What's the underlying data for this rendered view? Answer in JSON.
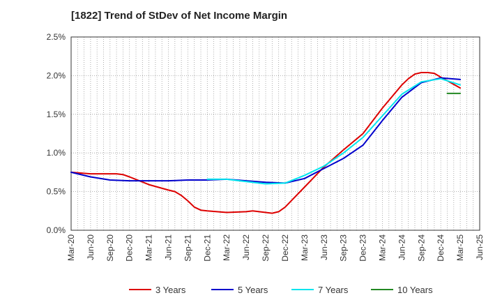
{
  "chart_data": {
    "type": "line",
    "title": "[1822]  Trend of StDev of Net Income Margin",
    "xlabel": "",
    "ylabel": "",
    "x_ticks": [
      "Mar-20",
      "Jun-20",
      "Sep-20",
      "Dec-20",
      "Mar-21",
      "Jun-21",
      "Sep-21",
      "Dec-21",
      "Mar-22",
      "Jun-22",
      "Sep-22",
      "Dec-22",
      "Mar-23",
      "Jun-23",
      "Sep-23",
      "Dec-23",
      "Mar-24",
      "Jun-24",
      "Sep-24",
      "Dec-24",
      "Mar-25",
      "Jun-25"
    ],
    "y_ticks": [
      "0.0%",
      "0.5%",
      "1.0%",
      "1.5%",
      "2.0%",
      "2.5%"
    ],
    "ylim": [
      0,
      2.5
    ],
    "y_unit": "%",
    "grid": true,
    "legend_position": "bottom",
    "series": [
      {
        "name": "3 Years",
        "color": "#dd0000",
        "x": [
          "Mar-20",
          "Jun-20",
          "Sep-20",
          "Oct-20",
          "Nov-20",
          "Dec-20",
          "Mar-21",
          "Jun-21",
          "Jul-21",
          "Aug-21",
          "Sep-21",
          "Oct-21",
          "Nov-21",
          "Dec-21",
          "Mar-22",
          "Jun-22",
          "Jul-22",
          "Aug-22",
          "Sep-22",
          "Oct-22",
          "Nov-22",
          "Dec-22",
          "Mar-23",
          "Jun-23",
          "Sep-23",
          "Dec-23",
          "Mar-24",
          "Jun-24",
          "Jul-24",
          "Aug-24",
          "Sep-24",
          "Oct-24",
          "Nov-24",
          "Dec-24",
          "Mar-25"
        ],
        "values": [
          0.75,
          0.73,
          0.73,
          0.73,
          0.72,
          0.69,
          0.59,
          0.52,
          0.5,
          0.45,
          0.38,
          0.3,
          0.26,
          0.25,
          0.23,
          0.24,
          0.25,
          0.24,
          0.23,
          0.22,
          0.24,
          0.3,
          0.56,
          0.82,
          1.04,
          1.25,
          1.58,
          1.88,
          1.96,
          2.02,
          2.04,
          2.04,
          2.03,
          1.98,
          1.84
        ]
      },
      {
        "name": "5 Years",
        "color": "#0000cc",
        "x": [
          "Mar-20",
          "Jun-20",
          "Sep-20",
          "Dec-20",
          "Mar-21",
          "Jun-21",
          "Sep-21",
          "Dec-21",
          "Mar-22",
          "Jun-22",
          "Sep-22",
          "Dec-22",
          "Mar-23",
          "Jun-23",
          "Sep-23",
          "Dec-23",
          "Mar-24",
          "Jun-24",
          "Sep-24",
          "Dec-24",
          "Mar-25"
        ],
        "values": [
          0.75,
          0.69,
          0.65,
          0.64,
          0.64,
          0.64,
          0.65,
          0.65,
          0.66,
          0.64,
          0.62,
          0.61,
          0.67,
          0.8,
          0.93,
          1.1,
          1.42,
          1.72,
          1.91,
          1.97,
          1.95
        ]
      },
      {
        "name": "7 Years",
        "color": "#00e5ee",
        "x": [
          "Dec-21",
          "Mar-22",
          "Jun-22",
          "Sep-22",
          "Dec-22",
          "Mar-23",
          "Jun-23",
          "Sep-23",
          "Dec-23",
          "Mar-24",
          "Jun-24",
          "Sep-24",
          "Dec-24",
          "Mar-25"
        ],
        "values": [
          0.66,
          0.66,
          0.63,
          0.6,
          0.61,
          0.71,
          0.83,
          1.0,
          1.2,
          1.48,
          1.76,
          1.92,
          1.96,
          1.88
        ]
      },
      {
        "name": "10 Years",
        "color": "#228822",
        "x": [
          "Jan-25",
          "Feb-25",
          "Mar-25"
        ],
        "values": [
          1.77,
          1.77,
          1.77
        ]
      }
    ]
  }
}
